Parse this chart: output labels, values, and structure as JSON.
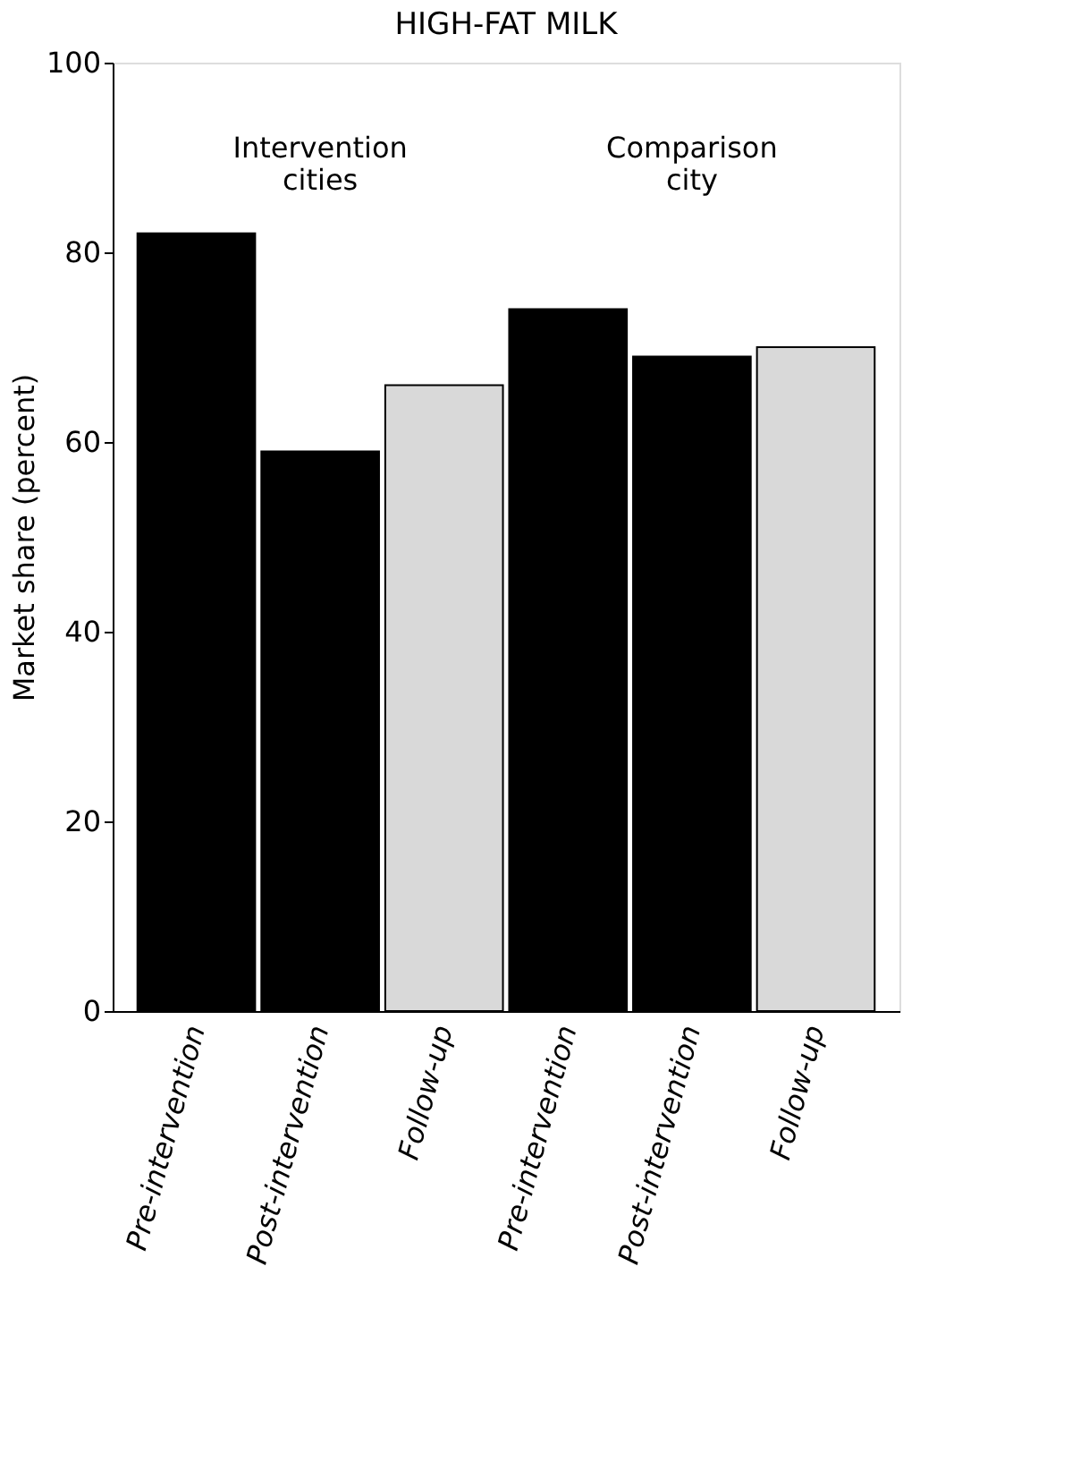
{
  "chart_data": {
    "type": "bar",
    "title": "HIGH-FAT MILK",
    "ylabel": "Market share (percent)",
    "categories": [
      "Pre-intervention",
      "Post-intervention",
      "Follow-up",
      "Pre-intervention",
      "Post-intervention",
      "Follow-up"
    ],
    "values": [
      82,
      59,
      66,
      74,
      69,
      70
    ],
    "colors": [
      "#000000",
      "#000000",
      "#d9d9d9",
      "#000000",
      "#000000",
      "#d9d9d9"
    ],
    "ylim": [
      0,
      100
    ],
    "yticks": [
      0,
      20,
      40,
      60,
      80,
      100
    ],
    "grid": false,
    "annotations": [
      "Intervention cities",
      "Comparison city"
    ]
  }
}
